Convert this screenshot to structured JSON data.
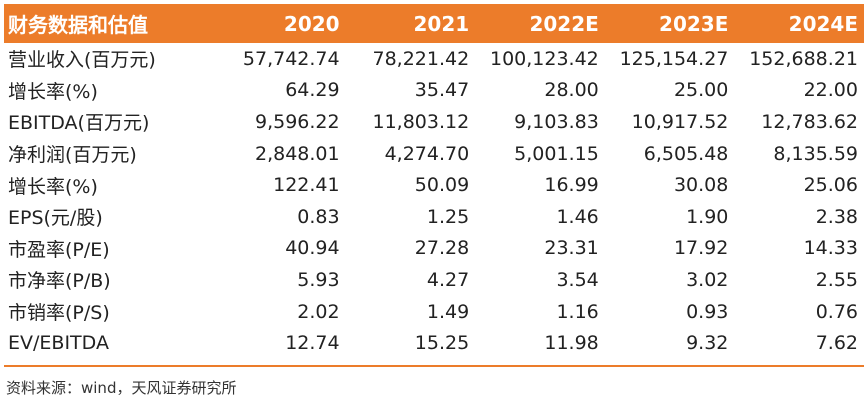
{
  "table": {
    "header_label": "财务数据和估值",
    "years": [
      "2020",
      "2021",
      "2022E",
      "2023E",
      "2024E"
    ],
    "rows": [
      {
        "label": "营业收入(百万元)",
        "values": [
          "57,742.74",
          "78,221.42",
          "100,123.42",
          "125,154.27",
          "152,688.21"
        ]
      },
      {
        "label": "增长率(%)",
        "values": [
          "64.29",
          "35.47",
          "28.00",
          "25.00",
          "22.00"
        ]
      },
      {
        "label": "EBITDA(百万元)",
        "values": [
          "9,596.22",
          "11,803.12",
          "9,103.83",
          "10,917.52",
          "12,783.62"
        ]
      },
      {
        "label": "净利润(百万元)",
        "values": [
          "2,848.01",
          "4,274.70",
          "5,001.15",
          "6,505.48",
          "8,135.59"
        ]
      },
      {
        "label": "增长率(%)",
        "values": [
          "122.41",
          "50.09",
          "16.99",
          "30.08",
          "25.06"
        ]
      },
      {
        "label": "EPS(元/股)",
        "values": [
          "0.83",
          "1.25",
          "1.46",
          "1.90",
          "2.38"
        ]
      },
      {
        "label": "市盈率(P/E)",
        "values": [
          "40.94",
          "27.28",
          "23.31",
          "17.92",
          "14.33"
        ]
      },
      {
        "label": "市净率(P/B)",
        "values": [
          "5.93",
          "4.27",
          "3.54",
          "3.02",
          "2.55"
        ]
      },
      {
        "label": "市销率(P/S)",
        "values": [
          "2.02",
          "1.49",
          "1.16",
          "0.93",
          "0.76"
        ]
      },
      {
        "label": "EV/EBITDA",
        "values": [
          "12.74",
          "15.25",
          "11.98",
          "9.32",
          "7.62"
        ]
      }
    ]
  },
  "source": "资料来源：wind，天风证券研究所",
  "colors": {
    "header_bg": "#ec7c2a",
    "header_text": "#ffffff",
    "body_text": "#222222",
    "rule": "#ec7c2a"
  }
}
